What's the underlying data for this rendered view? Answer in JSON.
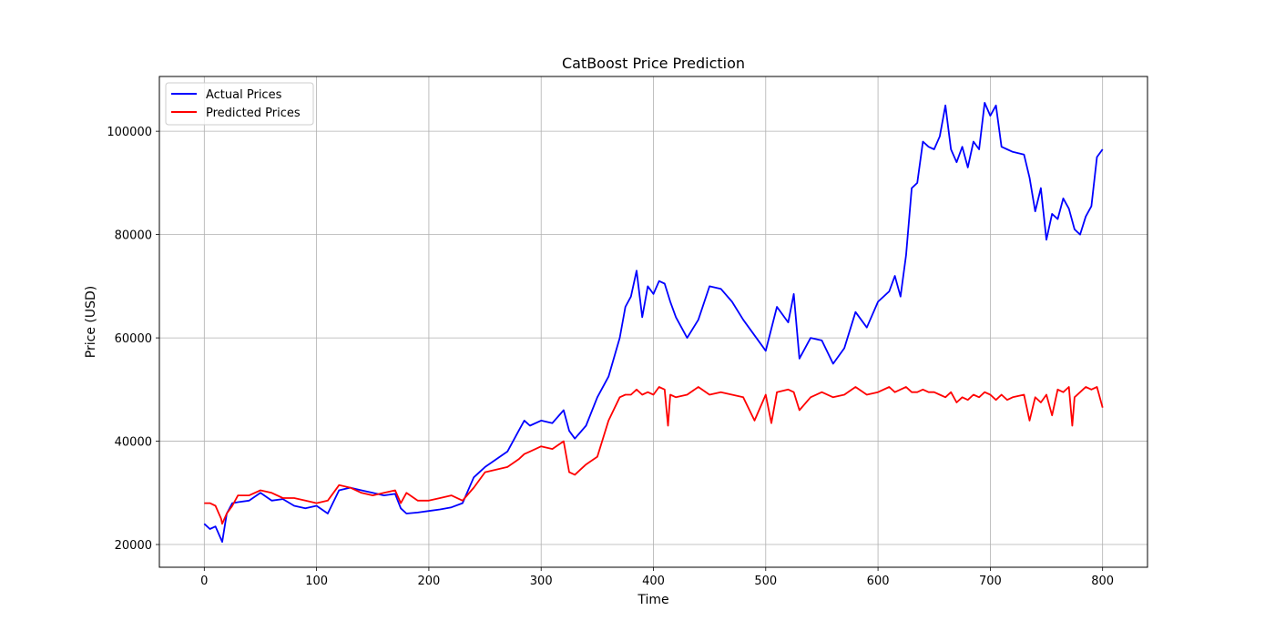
{
  "chart_data": {
    "type": "line",
    "title": "CatBoost Price Prediction",
    "xlabel": "Time",
    "ylabel": "Price (USD)",
    "xlim": [
      -40,
      840
    ],
    "ylim": [
      15600,
      110600
    ],
    "xticks": [
      0,
      100,
      200,
      300,
      400,
      500,
      600,
      700,
      800
    ],
    "yticks": [
      20000,
      40000,
      60000,
      80000,
      100000
    ],
    "xtick_labels": [
      "0",
      "100",
      "200",
      "300",
      "400",
      "500",
      "600",
      "700",
      "800"
    ],
    "ytick_labels": [
      "20000",
      "40000",
      "60000",
      "80000",
      "100000"
    ],
    "grid": true,
    "legend_position": "upper left",
    "series": [
      {
        "name": "Actual Prices",
        "color": "#0000ff",
        "x": [
          0,
          5,
          10,
          15,
          16,
          20,
          25,
          30,
          40,
          50,
          60,
          70,
          80,
          90,
          100,
          110,
          120,
          130,
          140,
          150,
          160,
          170,
          175,
          180,
          190,
          200,
          210,
          220,
          230,
          240,
          250,
          260,
          270,
          280,
          285,
          290,
          300,
          310,
          320,
          325,
          330,
          340,
          350,
          360,
          370,
          375,
          380,
          385,
          390,
          395,
          400,
          405,
          410,
          415,
          420,
          430,
          440,
          450,
          460,
          470,
          480,
          490,
          500,
          510,
          520,
          525,
          530,
          540,
          550,
          560,
          570,
          580,
          590,
          600,
          610,
          615,
          620,
          625,
          630,
          635,
          640,
          645,
          650,
          655,
          660,
          665,
          670,
          675,
          680,
          685,
          690,
          695,
          700,
          705,
          710,
          715,
          720,
          730,
          735,
          740,
          745,
          750,
          755,
          760,
          765,
          770,
          775,
          780,
          785,
          790,
          795,
          800
        ],
        "values": [
          24000,
          23000,
          23500,
          21000,
          20500,
          26000,
          28000,
          28200,
          28500,
          30000,
          28500,
          28800,
          27500,
          27000,
          27500,
          26000,
          30500,
          31000,
          30500,
          30000,
          29500,
          29800,
          27000,
          26000,
          26200,
          26500,
          26800,
          27200,
          28000,
          33000,
          35000,
          36500,
          38000,
          42000,
          44000,
          43000,
          44000,
          43500,
          46000,
          42000,
          40500,
          43000,
          48500,
          52500,
          60000,
          66000,
          68000,
          73000,
          64000,
          70000,
          68500,
          71000,
          70500,
          67000,
          64000,
          60000,
          63500,
          70000,
          69500,
          67000,
          63500,
          60500,
          57500,
          66000,
          63000,
          68500,
          56000,
          60000,
          59500,
          55000,
          58000,
          65000,
          62000,
          67000,
          69000,
          72000,
          68000,
          76000,
          89000,
          90000,
          98000,
          97000,
          96500,
          99000,
          105000,
          96500,
          94000,
          97000,
          93000,
          98000,
          96500,
          105500,
          103000,
          105000,
          97000,
          96500,
          96000,
          95500,
          91000,
          84500,
          89000,
          79000,
          84000,
          83000,
          87000,
          85000,
          81000,
          80000,
          83500,
          85500,
          95000,
          96500
        ]
      },
      {
        "name": "Predicted Prices",
        "color": "#ff0000",
        "x": [
          0,
          5,
          10,
          15,
          16,
          20,
          25,
          30,
          40,
          50,
          60,
          70,
          80,
          90,
          100,
          110,
          120,
          130,
          140,
          150,
          160,
          170,
          175,
          180,
          190,
          200,
          210,
          220,
          230,
          240,
          250,
          260,
          270,
          280,
          285,
          290,
          300,
          310,
          320,
          325,
          330,
          340,
          350,
          360,
          370,
          375,
          380,
          385,
          390,
          395,
          400,
          405,
          410,
          413,
          415,
          420,
          430,
          440,
          450,
          460,
          470,
          480,
          490,
          500,
          505,
          510,
          520,
          525,
          530,
          540,
          550,
          560,
          570,
          580,
          590,
          600,
          610,
          615,
          620,
          625,
          630,
          635,
          640,
          645,
          650,
          655,
          660,
          665,
          670,
          675,
          680,
          685,
          690,
          695,
          700,
          705,
          710,
          715,
          720,
          730,
          735,
          740,
          745,
          750,
          755,
          760,
          765,
          770,
          773,
          775,
          780,
          785,
          790,
          795,
          800
        ],
        "values": [
          28000,
          28000,
          27500,
          25000,
          24000,
          26000,
          27500,
          29500,
          29500,
          30500,
          30000,
          29000,
          29000,
          28500,
          28000,
          28500,
          31500,
          31000,
          30000,
          29500,
          30000,
          30500,
          28000,
          30000,
          28500,
          28500,
          29000,
          29500,
          28500,
          31000,
          34000,
          34500,
          35000,
          36500,
          37500,
          38000,
          39000,
          38500,
          40000,
          34000,
          33500,
          35500,
          37000,
          44000,
          48500,
          49000,
          49000,
          50000,
          49000,
          49500,
          49000,
          50500,
          50000,
          43000,
          49000,
          48500,
          49000,
          50500,
          49000,
          49500,
          49000,
          48500,
          44000,
          49000,
          43500,
          49500,
          50000,
          49500,
          46000,
          48500,
          49500,
          48500,
          49000,
          50500,
          49000,
          49500,
          50500,
          49500,
          50000,
          50500,
          49500,
          49500,
          50000,
          49500,
          49500,
          49000,
          48500,
          49500,
          47500,
          48500,
          48000,
          49000,
          48500,
          49500,
          49000,
          48000,
          49000,
          48000,
          48500,
          49000,
          44000,
          48500,
          47500,
          49000,
          45000,
          50000,
          49500,
          50500,
          43000,
          48500,
          49500,
          50500,
          50000,
          50500,
          46500
        ]
      }
    ]
  }
}
